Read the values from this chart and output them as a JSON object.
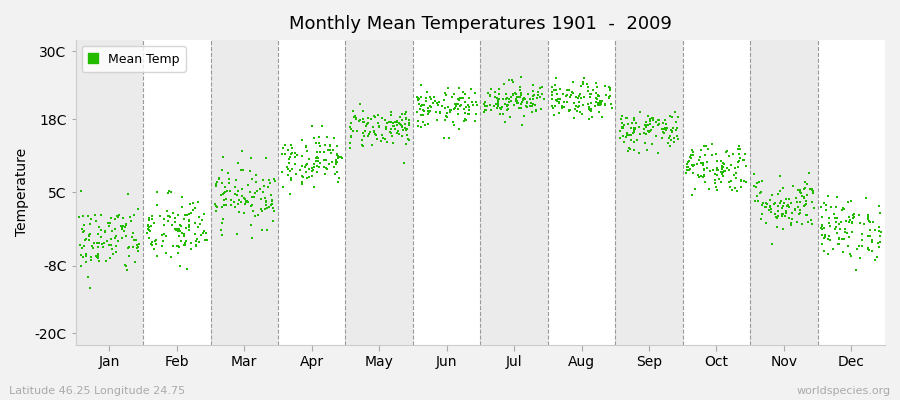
{
  "title": "Monthly Mean Temperatures 1901  -  2009",
  "ylabel": "Temperature",
  "xlabel_labels": [
    "Jan",
    "Feb",
    "Mar",
    "Apr",
    "May",
    "Jun",
    "Jul",
    "Aug",
    "Sep",
    "Oct",
    "Nov",
    "Dec"
  ],
  "yticks": [
    -20,
    -8,
    5,
    18,
    30
  ],
  "ytick_labels": [
    "-20C",
    "-8C",
    "5C",
    "18C",
    "30C"
  ],
  "ylim": [
    -22,
    32
  ],
  "dot_color": "#22bb00",
  "dot_size": 3,
  "bg_color": "#f2f2f2",
  "plot_bg_color": "#ffffff",
  "band_color": "#ebebeb",
  "legend_label": "Mean Temp",
  "footer_left": "Latitude 46.25 Longitude 24.75",
  "footer_right": "worldspecies.org",
  "monthly_means": [
    -3.5,
    -1.8,
    4.5,
    10.8,
    16.5,
    19.8,
    21.5,
    21.2,
    16.0,
    9.5,
    3.0,
    -1.5
  ],
  "monthly_stds": [
    3.2,
    3.2,
    2.8,
    2.3,
    1.8,
    1.8,
    1.6,
    1.6,
    1.8,
    2.3,
    2.5,
    2.8
  ],
  "n_years": 109,
  "seed": 42
}
